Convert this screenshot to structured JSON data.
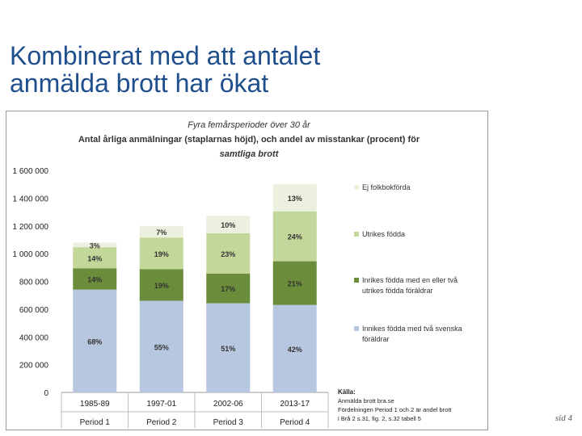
{
  "slide": {
    "title_line1": "Kombinerat med att antalet",
    "title_line2": "anmälda brott har ökat",
    "page_number": "sid 4"
  },
  "chart_data": {
    "type": "bar",
    "stacked": true,
    "title_line1": "Fyra femårsperioder över 30 år",
    "title_line2": "Antal årliga anmälningar (staplarnas höjd), och andel av misstankar (procent) för",
    "title_line3": "samtliga brott",
    "categories": [
      "1985-89",
      "1997-01",
      "2002-06",
      "2013-17"
    ],
    "periods": [
      "Period 1",
      "Period 2",
      "Period 3",
      "Period 4"
    ],
    "ylim": [
      0,
      1600000
    ],
    "yticks": [
      "0",
      "200 000",
      "400 000",
      "600 000",
      "800 000",
      "1 000 000",
      "1 200 000",
      "1 400 000",
      "1 600 000"
    ],
    "grid": false,
    "legend_position": "right",
    "totals": [
      1090000,
      1200000,
      1260000,
      1500000
    ],
    "series": [
      {
        "name": "Innikes födda med två svenska föräldrar",
        "name_line1": "Innikes födda med två svenska",
        "name_line2": "föräldrar",
        "color": "#b8c7e0",
        "percent": [
          68,
          55,
          51,
          42
        ],
        "labels": [
          "68%",
          "55%",
          "51%",
          "42%"
        ]
      },
      {
        "name": "Inrikes födda med en eller två utrikes födda föräldrar",
        "name_line1": "Inrikes födda med en eller två",
        "name_line2": "utrikes födda föräldrar",
        "color": "#6b8c3a",
        "percent": [
          14,
          19,
          17,
          21
        ],
        "labels": [
          "14%",
          "19%",
          "17%",
          "21%"
        ]
      },
      {
        "name": "Utrikes födda",
        "name_line1": "Utrikes födda",
        "name_line2": "",
        "color": "#c4d79b",
        "percent": [
          14,
          19,
          23,
          24
        ],
        "labels": [
          "14%",
          "19%",
          "23%",
          "24%"
        ]
      },
      {
        "name": "Ej folkbokförda",
        "name_line1": "Ej folkbokförda",
        "name_line2": "",
        "color": "#ebf1de",
        "percent": [
          3,
          7,
          10,
          13
        ],
        "labels": [
          "3%",
          "7%",
          "10%",
          "13%"
        ]
      }
    ],
    "source": {
      "heading": "Källa:",
      "line1": "Anmälda brott bra.se",
      "line2": "Fördelningen Period 1 och 2 är andel brott",
      "line3": "i Brå 2 s.31, fig. 2, s.32 tabell 5"
    }
  }
}
